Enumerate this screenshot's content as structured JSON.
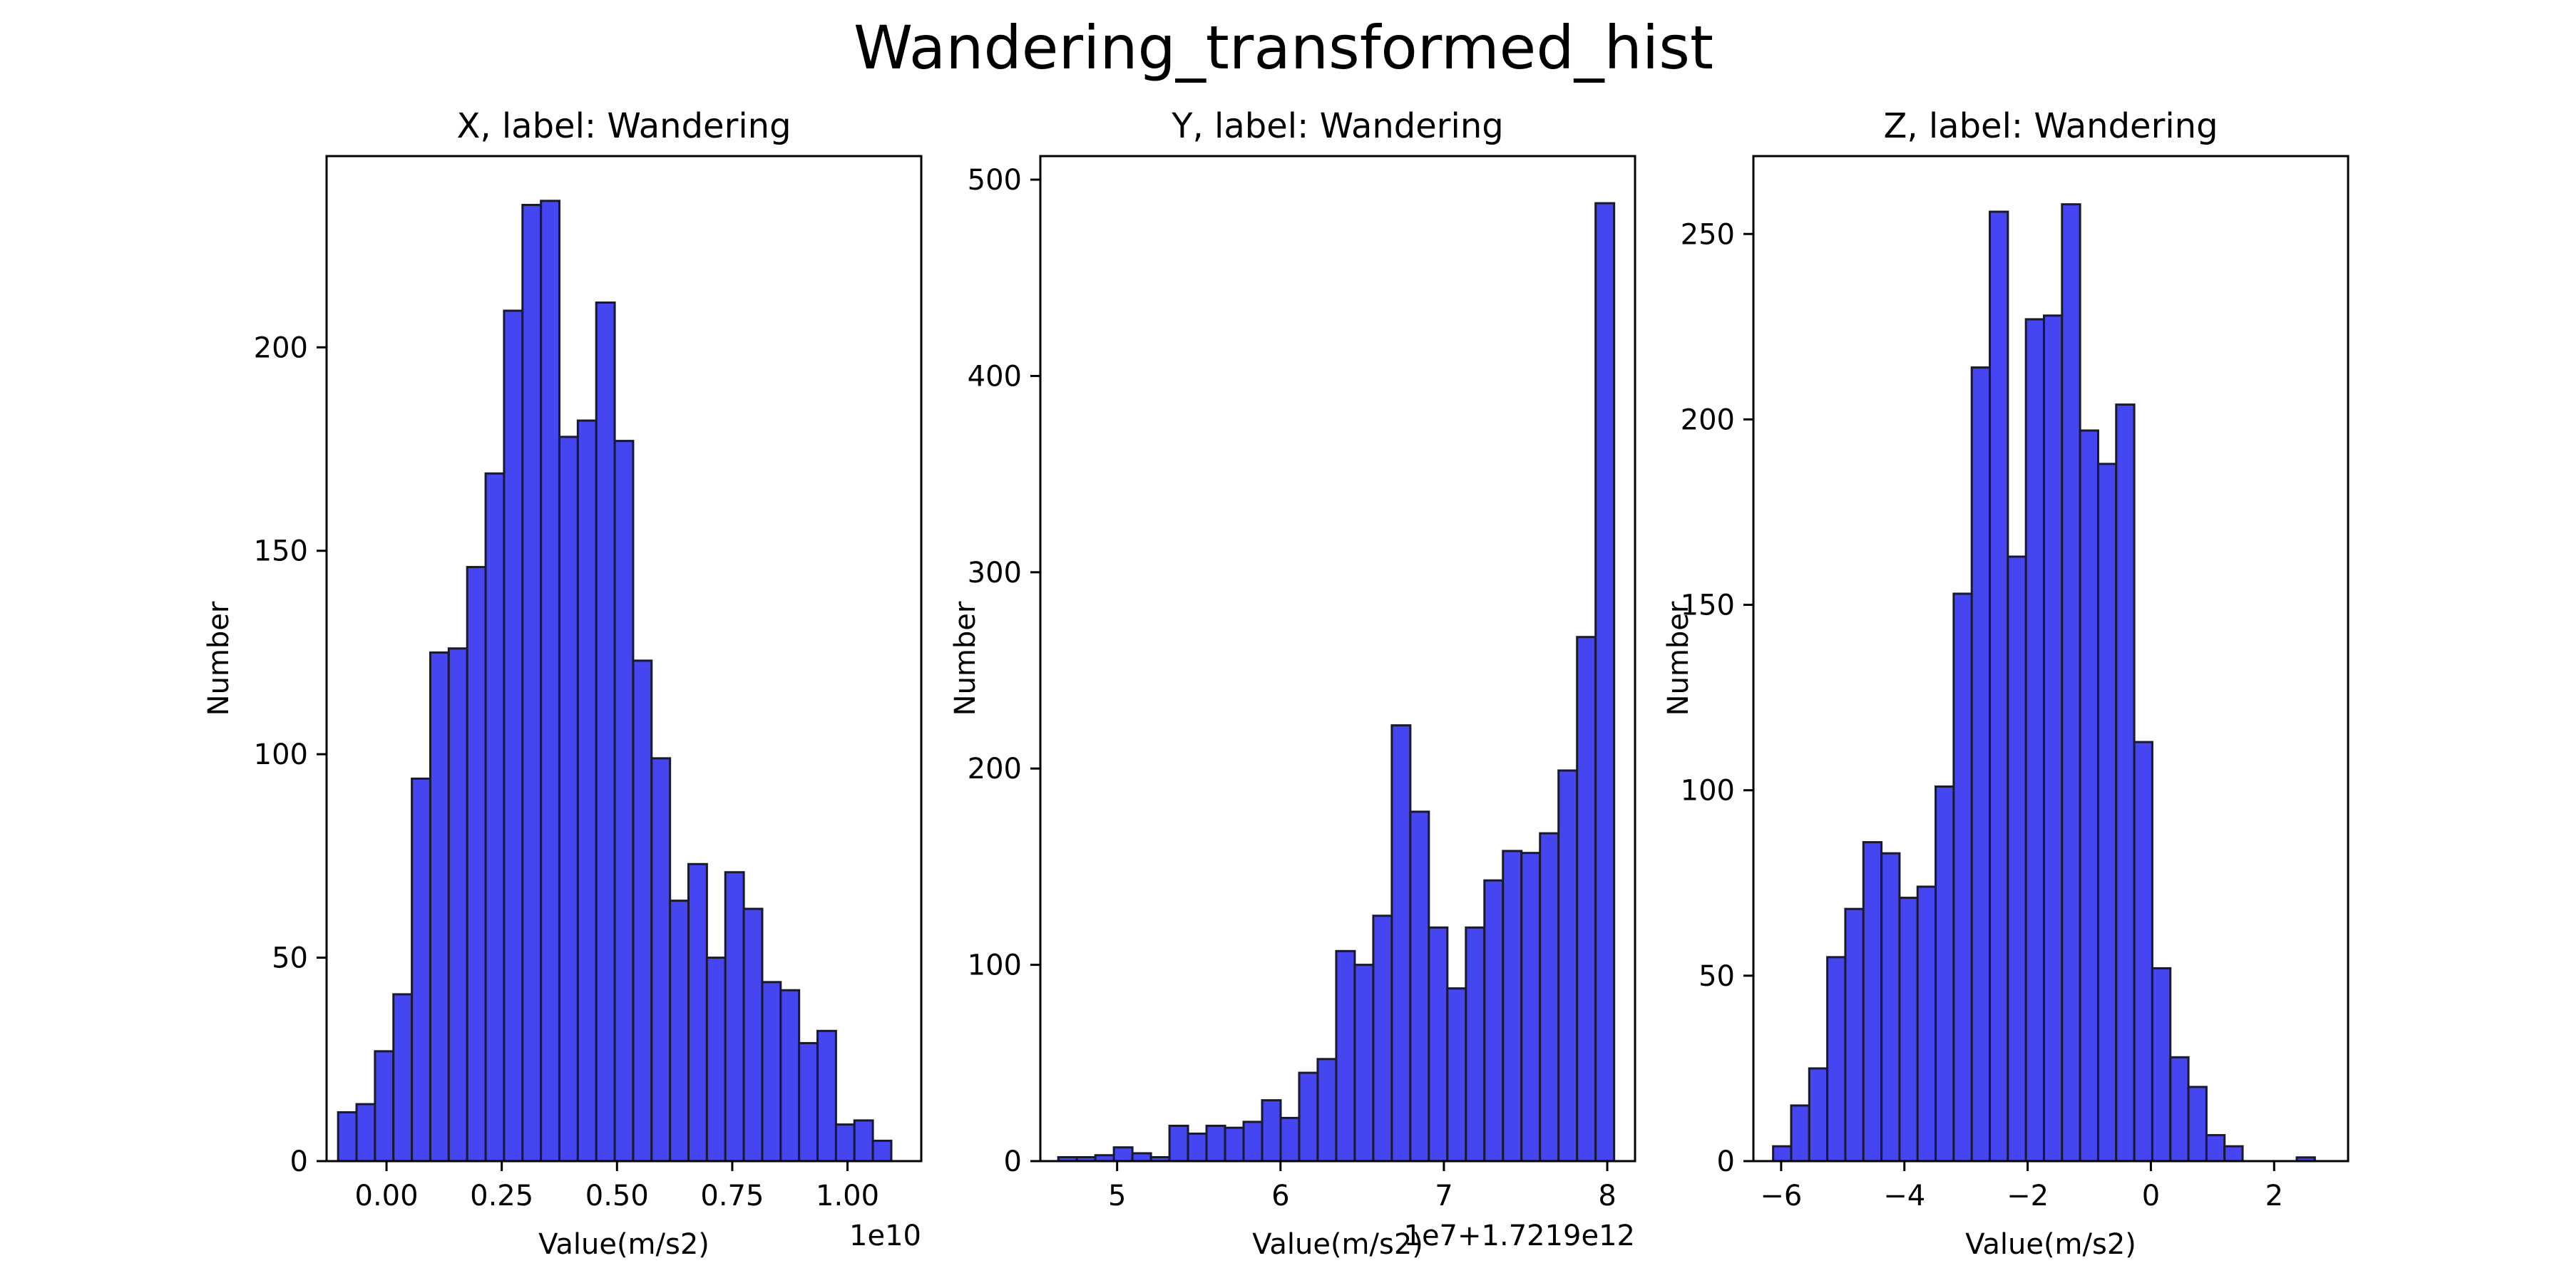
{
  "figure": {
    "title": "Wandering_transformed_hist"
  },
  "style": {
    "bar_fill": "#4545f2",
    "bar_edge": "#1a1a2e",
    "axes_color": "#000000"
  },
  "chart_data": [
    {
      "type": "bar",
      "title": "X, label: Wandering",
      "xlabel": "Value(m/s2)",
      "ylabel": "Number",
      "offset_text": "1e10",
      "xlim": [
        -0.13,
        1.16
      ],
      "ylim": [
        0,
        247
      ],
      "xticks": [
        0.0,
        0.25,
        0.5,
        0.75,
        1.0
      ],
      "xtick_labels": [
        "0.00",
        "0.25",
        "0.50",
        "0.75",
        "1.00"
      ],
      "yticks": [
        0,
        50,
        100,
        150,
        200
      ],
      "ytick_labels": [
        "0",
        "50",
        "100",
        "150",
        "200"
      ],
      "bin_start": -0.105,
      "bin_width": 0.04,
      "values": [
        12,
        14,
        27,
        41,
        94,
        125,
        126,
        146,
        169,
        209,
        235,
        236,
        178,
        182,
        211,
        177,
        123,
        99,
        64,
        73,
        50,
        71,
        62,
        44,
        42,
        29,
        32,
        9,
        10,
        5
      ]
    },
    {
      "type": "bar",
      "title": "Y, label: Wandering",
      "xlabel": "Value(m/s2)",
      "ylabel": "Number",
      "offset_text": "1e7+1.7219e12",
      "xlim": [
        4.53,
        8.17
      ],
      "ylim": [
        0,
        512
      ],
      "xticks": [
        5,
        6,
        7,
        8
      ],
      "xtick_labels": [
        "5",
        "6",
        "7",
        "8"
      ],
      "yticks": [
        0,
        100,
        200,
        300,
        400,
        500
      ],
      "ytick_labels": [
        "0",
        "100",
        "200",
        "300",
        "400",
        "500"
      ],
      "bin_start": 4.64,
      "bin_width": 0.1134,
      "values": [
        2,
        2,
        3,
        7,
        4,
        2,
        18,
        14,
        18,
        17,
        20,
        31,
        22,
        45,
        52,
        107,
        100,
        125,
        222,
        178,
        119,
        88,
        119,
        143,
        158,
        157,
        167,
        199,
        267,
        488
      ]
    },
    {
      "type": "bar",
      "title": "Z, label: Wandering",
      "xlabel": "Value(m/s2)",
      "ylabel": "Number",
      "offset_text": "",
      "xlim": [
        -6.45,
        3.2
      ],
      "ylim": [
        0,
        271
      ],
      "xticks": [
        -6,
        -4,
        -2,
        0,
        2
      ],
      "xtick_labels": [
        "−6",
        "−4",
        "−2",
        "0",
        "2"
      ],
      "yticks": [
        0,
        50,
        100,
        150,
        200,
        250
      ],
      "ytick_labels": [
        "0",
        "50",
        "100",
        "150",
        "200",
        "250"
      ],
      "bin_start": -6.13,
      "bin_width": 0.293,
      "values": [
        4,
        15,
        25,
        55,
        68,
        86,
        83,
        71,
        74,
        101,
        153,
        214,
        256,
        163,
        227,
        228,
        258,
        197,
        188,
        204,
        113,
        52,
        28,
        20,
        7,
        4,
        0,
        0,
        0,
        1
      ]
    }
  ]
}
